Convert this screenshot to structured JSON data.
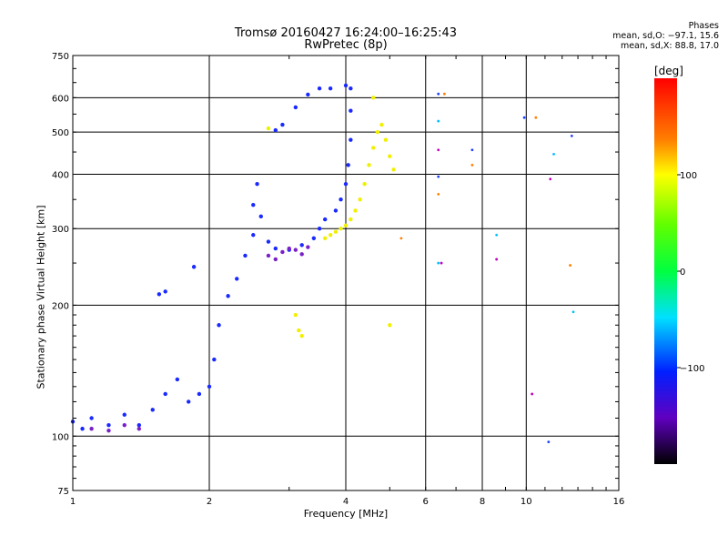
{
  "header": {
    "title_line1": "Tromsø 20160427 16:24:00–16:25:43",
    "title_line2": "RwPretec (8p)",
    "info_line1": "Phases",
    "info_line2": "mean, sd,O: −97.1, 15.6",
    "info_line3": "mean, sd,X:  88.8, 17.0"
  },
  "colorbar": {
    "unit_label": "[deg]",
    "ticks": [
      "100",
      "0",
      "−100"
    ],
    "tick_values": [
      100,
      0,
      -100
    ],
    "range": [
      -200,
      200
    ]
  },
  "chart_data": {
    "type": "scatter",
    "xlabel": "Frequency [MHz]",
    "ylabel": "Stationary phase Virtual Height [km]",
    "x_scale": "log",
    "y_scale": "log",
    "xlim": [
      1,
      16
    ],
    "ylim": [
      75,
      750
    ],
    "x_ticks": [
      1,
      2,
      4,
      6,
      8,
      10,
      16
    ],
    "x_tick_labels": [
      "1",
      "2",
      "4",
      "6",
      "8",
      "10",
      "16"
    ],
    "y_ticks": [
      75,
      100,
      200,
      300,
      400,
      500,
      600,
      750
    ],
    "y_tick_labels": [
      "75",
      "100",
      "200",
      "300",
      "400",
      "500",
      "600",
      "750"
    ],
    "series": [
      {
        "phase_deg": -97,
        "color": "#1a2aff",
        "points": [
          [
            1.0,
            108
          ],
          [
            1.05,
            104
          ],
          [
            1.1,
            110
          ],
          [
            1.2,
            106
          ],
          [
            1.3,
            112
          ],
          [
            1.4,
            106
          ],
          [
            1.5,
            115
          ],
          [
            1.6,
            125
          ],
          [
            1.7,
            135
          ],
          [
            1.8,
            120
          ],
          [
            1.9,
            125
          ],
          [
            2.0,
            130
          ],
          [
            2.05,
            150
          ],
          [
            2.1,
            180
          ],
          [
            2.2,
            210
          ],
          [
            2.3,
            230
          ],
          [
            2.4,
            260
          ],
          [
            2.5,
            290
          ],
          [
            2.5,
            340
          ],
          [
            2.55,
            380
          ],
          [
            2.6,
            320
          ],
          [
            2.7,
            280
          ],
          [
            2.8,
            270
          ],
          [
            3.0,
            268
          ],
          [
            3.2,
            275
          ],
          [
            3.4,
            285
          ],
          [
            3.5,
            300
          ],
          [
            3.6,
            315
          ],
          [
            3.8,
            330
          ],
          [
            3.9,
            350
          ],
          [
            4.0,
            380
          ],
          [
            4.05,
            420
          ],
          [
            4.1,
            480
          ],
          [
            4.1,
            560
          ],
          [
            4.1,
            630
          ],
          [
            4.0,
            640
          ],
          [
            3.7,
            630
          ],
          [
            3.5,
            630
          ],
          [
            3.3,
            610
          ],
          [
            3.1,
            570
          ],
          [
            2.9,
            520
          ],
          [
            2.8,
            505
          ],
          [
            1.6,
            215
          ],
          [
            1.55,
            212
          ],
          [
            1.85,
            245
          ]
        ]
      },
      {
        "phase_deg": 95,
        "color": "#f0f000",
        "points": [
          [
            3.6,
            285
          ],
          [
            3.7,
            290
          ],
          [
            3.8,
            295
          ],
          [
            3.9,
            300
          ],
          [
            4.0,
            305
          ],
          [
            4.1,
            315
          ],
          [
            4.2,
            330
          ],
          [
            4.3,
            350
          ],
          [
            4.4,
            380
          ],
          [
            4.5,
            420
          ],
          [
            4.6,
            460
          ],
          [
            4.7,
            500
          ],
          [
            4.8,
            520
          ],
          [
            4.9,
            480
          ],
          [
            5.0,
            440
          ],
          [
            5.1,
            410
          ],
          [
            4.6,
            600
          ],
          [
            3.1,
            190
          ],
          [
            3.15,
            175
          ],
          [
            3.2,
            170
          ],
          [
            5.0,
            180
          ],
          [
            2.7,
            510
          ]
        ]
      },
      {
        "phase_deg": -135,
        "color": "#7a20c8",
        "points": [
          [
            1.1,
            104
          ],
          [
            1.2,
            103
          ],
          [
            1.3,
            106
          ],
          [
            1.4,
            104
          ],
          [
            2.7,
            260
          ],
          [
            2.8,
            255
          ],
          [
            2.9,
            265
          ],
          [
            3.0,
            270
          ],
          [
            3.1,
            268
          ],
          [
            3.2,
            262
          ],
          [
            3.3,
            272
          ]
        ]
      }
    ],
    "sparse_echoes": [
      [
        6.4,
        612
      ],
      [
        6.6,
        612
      ],
      [
        6.4,
        530
      ],
      [
        6.4,
        455
      ],
      [
        6.4,
        395
      ],
      [
        6.4,
        360
      ],
      [
        6.4,
        250
      ],
      [
        6.5,
        250
      ],
      [
        7.6,
        455
      ],
      [
        7.6,
        420
      ],
      [
        8.6,
        290
      ],
      [
        8.6,
        255
      ],
      [
        9.9,
        540
      ],
      [
        10.5,
        540
      ],
      [
        11.5,
        445
      ],
      [
        11.3,
        390
      ],
      [
        12.6,
        490
      ],
      [
        12.5,
        247
      ],
      [
        12.7,
        193
      ],
      [
        10.3,
        125
      ],
      [
        11.2,
        97
      ],
      [
        5.3,
        285
      ]
    ]
  }
}
